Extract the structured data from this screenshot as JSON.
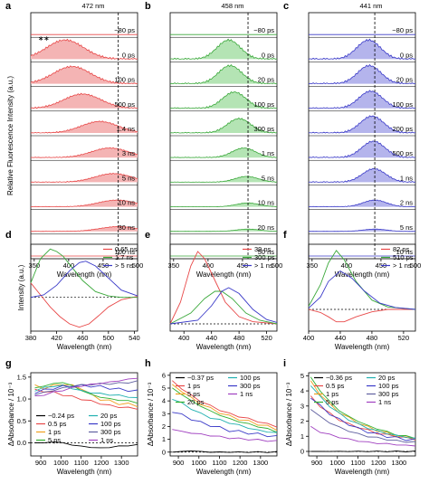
{
  "chart_data": [
    {
      "panel": "a",
      "type": "area",
      "top_label": "472 nm",
      "marker_x": 472,
      "xlabel": "Wavelength (nm)",
      "ylabel": "Relative Fluorescence Intensity (a.u.)",
      "xlim": [
        345,
        500
      ],
      "xticks": [
        350,
        400,
        450,
        500
      ],
      "color": "#e84848",
      "fill": "#f4b4b4",
      "star_label": "∗∗",
      "series": [
        {
          "name": "−80 ps",
          "amp": 0
        },
        {
          "name": "0 ps",
          "amp": 1.0,
          "peak": 395
        },
        {
          "name": "100 ps",
          "amp": 0.9,
          "peak": 405
        },
        {
          "name": "500 ps",
          "amp": 0.75,
          "peak": 420
        },
        {
          "name": "1.4 ns",
          "amp": 0.6,
          "peak": 445
        },
        {
          "name": "3 ns",
          "amp": 0.5,
          "peak": 460
        },
        {
          "name": "5 ns",
          "amp": 0.45,
          "peak": 465
        },
        {
          "name": "10 ns",
          "amp": 0.35,
          "peak": 470
        },
        {
          "name": "30 ns",
          "amp": 0.25,
          "peak": 472
        },
        {
          "name": "100 ns",
          "amp": 0
        }
      ]
    },
    {
      "panel": "b",
      "type": "area",
      "top_label": "458 nm",
      "marker_x": 458,
      "xlabel": "Wavelength (nm)",
      "ylabel": "",
      "xlim": [
        345,
        500
      ],
      "xticks": [
        350,
        400,
        450,
        500
      ],
      "color": "#3aa83a",
      "fill": "#b4e4b4",
      "series": [
        {
          "name": "−80 ps",
          "amp": 0
        },
        {
          "name": "0 ps",
          "amp": 1.0,
          "peak": 430
        },
        {
          "name": "20 ps",
          "amp": 0.95,
          "peak": 432
        },
        {
          "name": "100 ps",
          "amp": 0.85,
          "peak": 438
        },
        {
          "name": "300 ps",
          "amp": 0.75,
          "peak": 445
        },
        {
          "name": "1 ns",
          "amp": 0.5,
          "peak": 452
        },
        {
          "name": "5 ns",
          "amp": 0.3,
          "peak": 456
        },
        {
          "name": "10 ns",
          "amp": 0.2,
          "peak": 458
        },
        {
          "name": "20 ns",
          "amp": 0.12,
          "peak": 458
        },
        {
          "name": "50 ns",
          "amp": 0
        }
      ]
    },
    {
      "panel": "c",
      "type": "area",
      "top_label": "441 nm",
      "marker_x": 441,
      "xlabel": "Wavelength (nm)",
      "ylabel": "",
      "xlim": [
        345,
        500
      ],
      "xticks": [
        350,
        400,
        450,
        500
      ],
      "color": "#3a3ac8",
      "fill": "#b4b4ec",
      "series": [
        {
          "name": "−80 ps",
          "amp": 0
        },
        {
          "name": "0 ps",
          "amp": 1.0,
          "peak": 432
        },
        {
          "name": "20 ps",
          "amp": 0.95,
          "peak": 433
        },
        {
          "name": "100 ps",
          "amp": 0.9,
          "peak": 435
        },
        {
          "name": "200 ps",
          "amp": 0.88,
          "peak": 437
        },
        {
          "name": "500 ps",
          "amp": 0.85,
          "peak": 439
        },
        {
          "name": "1 ns",
          "amp": 0.7,
          "peak": 440
        },
        {
          "name": "2 ns",
          "amp": 0.35,
          "peak": 441
        },
        {
          "name": "5 ns",
          "amp": 0.12,
          "peak": 441
        },
        {
          "name": "10 ns",
          "amp": 0
        }
      ]
    },
    {
      "panel": "d",
      "type": "line",
      "xlabel": "Wavelength (nm)",
      "ylabel": "Intensity (a.u.)",
      "xlim": [
        380,
        545
      ],
      "ylim": [
        -0.7,
        1.1
      ],
      "xticks": [
        380,
        420,
        460,
        500,
        540
      ],
      "series": [
        {
          "name": "0.65 ns",
          "color": "#e84848",
          "x": [
            380,
            395,
            410,
            425,
            440,
            455,
            470,
            485,
            500,
            520,
            545
          ],
          "y": [
            0.3,
            0.05,
            -0.2,
            -0.4,
            -0.55,
            -0.62,
            -0.55,
            -0.38,
            -0.2,
            -0.05,
            0.02
          ]
        },
        {
          "name": "1.7 ns",
          "color": "#3aa83a",
          "x": [
            380,
            395,
            410,
            420,
            430,
            445,
            460,
            480,
            500,
            520,
            545
          ],
          "y": [
            0.3,
            0.8,
            1.0,
            0.95,
            0.85,
            0.6,
            0.35,
            0.12,
            0.03,
            0.0,
            0.0
          ]
        },
        {
          "name": "> 5 ns",
          "color": "#3a3ac8",
          "x": [
            380,
            400,
            420,
            440,
            455,
            465,
            480,
            500,
            520,
            545
          ],
          "y": [
            0.0,
            0.05,
            0.25,
            0.55,
            0.72,
            0.75,
            0.65,
            0.4,
            0.15,
            0.03
          ]
        }
      ]
    },
    {
      "panel": "e",
      "type": "line",
      "xlabel": "Wavelength (nm)",
      "ylabel": "",
      "xlim": [
        380,
        535
      ],
      "ylim": [
        -0.1,
        1.1
      ],
      "xticks": [
        400,
        440,
        480,
        520
      ],
      "series": [
        {
          "name": "39 ps",
          "color": "#e84848",
          "x": [
            380,
            395,
            410,
            420,
            430,
            445,
            460,
            480,
            500,
            535
          ],
          "y": [
            0.0,
            0.3,
            0.8,
            1.0,
            0.9,
            0.6,
            0.3,
            0.1,
            0.03,
            0.0
          ]
        },
        {
          "name": "300 ps",
          "color": "#3aa83a",
          "x": [
            380,
            410,
            430,
            445,
            455,
            470,
            490,
            510,
            535
          ],
          "y": [
            0.0,
            0.15,
            0.35,
            0.45,
            0.45,
            0.35,
            0.15,
            0.05,
            0.0
          ]
        },
        {
          "name": "> 1 ns",
          "color": "#3a3ac8",
          "x": [
            380,
            420,
            440,
            455,
            465,
            480,
            500,
            520,
            535
          ],
          "y": [
            0.0,
            0.05,
            0.25,
            0.45,
            0.5,
            0.42,
            0.2,
            0.06,
            0.02
          ]
        }
      ]
    },
    {
      "panel": "f",
      "type": "line",
      "xlabel": "Wavelength (nm)",
      "ylabel": "",
      "xlim": [
        400,
        535
      ],
      "ylim": [
        -0.35,
        1.05
      ],
      "xticks": [
        400,
        440,
        480,
        520
      ],
      "series": [
        {
          "name": "82 ps",
          "color": "#e84848",
          "x": [
            400,
            415,
            425,
            435,
            445,
            460,
            480,
            500,
            535
          ],
          "y": [
            0.0,
            -0.05,
            -0.12,
            -0.2,
            -0.2,
            -0.12,
            -0.04,
            0.0,
            0.0
          ]
        },
        {
          "name": "510 ps",
          "color": "#3aa83a",
          "x": [
            400,
            415,
            425,
            435,
            445,
            460,
            480,
            500,
            535
          ],
          "y": [
            0.05,
            0.4,
            0.75,
            0.95,
            0.8,
            0.45,
            0.15,
            0.04,
            0.0
          ]
        },
        {
          "name": "> 1 ns",
          "color": "#3a3ac8",
          "x": [
            400,
            415,
            425,
            440,
            455,
            470,
            490,
            510,
            535
          ],
          "y": [
            0.02,
            0.2,
            0.45,
            0.62,
            0.5,
            0.3,
            0.1,
            0.03,
            0.0
          ]
        }
      ]
    },
    {
      "panel": "g",
      "type": "line",
      "xlabel": "Wavelength (nm)",
      "ylabel": "ΔAbsorbance / 10⁻³",
      "xlim": [
        850,
        1380
      ],
      "ylim": [
        -0.3,
        1.6
      ],
      "xticks": [
        900,
        1000,
        1100,
        1200,
        1300
      ],
      "yticks": [
        0.0,
        0.5,
        1.0,
        1.5
      ],
      "ytick_labels": [
        "0.0",
        "0.5",
        "1.0",
        "1.5"
      ],
      "series": [
        {
          "name": "−0.24 ps",
          "color": "#000000",
          "v": [
            0.0,
            0.0,
            0.02,
            0.0,
            -0.05,
            -0.08,
            -0.1,
            -0.12,
            -0.1,
            -0.08,
            -0.06,
            -0.05
          ]
        },
        {
          "name": "0.5 ps",
          "color": "#e84848",
          "v": [
            1.2,
            1.18,
            1.15,
            1.1,
            1.05,
            1.0,
            0.95,
            0.9,
            0.85,
            0.82,
            0.8,
            0.78
          ]
        },
        {
          "name": "1 ps",
          "color": "#f0a020",
          "v": [
            1.3,
            1.25,
            1.3,
            1.35,
            1.3,
            1.25,
            1.1,
            1.0,
            0.95,
            0.9,
            0.88,
            0.85
          ]
        },
        {
          "name": "5 ps",
          "color": "#30b030",
          "v": [
            1.25,
            1.3,
            1.35,
            1.38,
            1.3,
            1.2,
            1.1,
            1.05,
            1.0,
            0.98,
            0.95,
            0.92
          ]
        },
        {
          "name": "20 ps",
          "color": "#20b0b0",
          "v": [
            1.2,
            1.25,
            1.3,
            1.3,
            1.25,
            1.18,
            1.15,
            1.12,
            1.1,
            1.08,
            1.05,
            1.02
          ]
        },
        {
          "name": "100 ps",
          "color": "#3a3ac8",
          "v": [
            1.15,
            1.2,
            1.25,
            1.28,
            1.3,
            1.3,
            1.3,
            1.28,
            1.25,
            1.22,
            1.2,
            1.18
          ]
        },
        {
          "name": "300 ps",
          "color": "#6060a0",
          "v": [
            1.1,
            1.15,
            1.2,
            1.25,
            1.3,
            1.32,
            1.33,
            1.35,
            1.35,
            1.36,
            1.38,
            1.4
          ]
        },
        {
          "name": "1 ns",
          "color": "#a040c0",
          "v": [
            1.05,
            1.1,
            1.15,
            1.2,
            1.25,
            1.3,
            1.33,
            1.36,
            1.38,
            1.42,
            1.45,
            1.48
          ]
        }
      ]
    },
    {
      "panel": "h",
      "type": "line",
      "xlabel": "Wavelength (nm)",
      "ylabel": "ΔAbsorbance / 10⁻³",
      "xlim": [
        860,
        1380
      ],
      "ylim": [
        -0.3,
        6.2
      ],
      "xticks": [
        900,
        1000,
        1100,
        1200,
        1300
      ],
      "yticks": [
        0,
        1,
        2,
        3,
        4,
        5,
        6
      ],
      "ytick_labels": [
        "0",
        "1",
        "2",
        "3",
        "4",
        "5",
        "6"
      ],
      "series": [
        {
          "name": "−0.37 ps",
          "color": "#000000",
          "v": [
            0.0,
            0.05,
            0.1,
            0.05,
            0.0,
            0.0,
            0.0,
            0.0,
            0.0,
            0.0,
            0.0,
            0.0
          ]
        },
        {
          "name": "1 ps",
          "color": "#e84848",
          "v": [
            5.5,
            5.0,
            4.4,
            4.0,
            3.6,
            3.3,
            3.0,
            2.8,
            2.6,
            2.4,
            2.2,
            2.0
          ]
        },
        {
          "name": "5 ps",
          "color": "#f0a020",
          "v": [
            5.2,
            4.8,
            4.2,
            3.8,
            3.4,
            3.1,
            2.8,
            2.6,
            2.4,
            2.2,
            2.0,
            1.8
          ]
        },
        {
          "name": "20 ps",
          "color": "#30b030",
          "v": [
            5.0,
            4.5,
            4.0,
            3.6,
            3.2,
            2.9,
            2.6,
            2.4,
            2.2,
            2.0,
            1.8,
            1.6
          ]
        },
        {
          "name": "100 ps",
          "color": "#20b0b0",
          "v": [
            4.2,
            3.8,
            3.4,
            3.0,
            2.7,
            2.5,
            2.3,
            2.1,
            1.9,
            1.7,
            1.6,
            1.5
          ]
        },
        {
          "name": "300 ps",
          "color": "#3a3ac8",
          "v": [
            3.2,
            2.9,
            2.6,
            2.3,
            2.1,
            1.9,
            1.7,
            1.6,
            1.5,
            1.4,
            1.3,
            1.2
          ]
        },
        {
          "name": "1 ns",
          "color": "#a040c0",
          "v": [
            1.8,
            1.6,
            1.5,
            1.4,
            1.3,
            1.2,
            1.1,
            1.05,
            1.0,
            0.95,
            0.9,
            0.85
          ]
        }
      ]
    },
    {
      "panel": "i",
      "type": "line",
      "xlabel": "Wavelength (nm)",
      "ylabel": "ΔAbsorbance / 10⁻³",
      "xlim": [
        860,
        1380
      ],
      "ylim": [
        -0.3,
        5.2
      ],
      "xticks": [
        900,
        1000,
        1100,
        1200,
        1300
      ],
      "yticks": [
        0,
        1,
        2,
        3,
        4,
        5
      ],
      "ytick_labels": [
        "0",
        "1",
        "2",
        "3",
        "4",
        "5"
      ],
      "series": [
        {
          "name": "−0.36 ps",
          "color": "#000000",
          "v": [
            0.0,
            0.0,
            0.0,
            0.0,
            0.0,
            0.0,
            0.0,
            0.0,
            0.0,
            0.0,
            0.0,
            0.0
          ]
        },
        {
          "name": "0.5 ps",
          "color": "#e84848",
          "v": [
            3.6,
            3.0,
            2.5,
            2.1,
            1.8,
            1.6,
            1.4,
            1.2,
            1.1,
            1.0,
            0.9,
            0.8
          ]
        },
        {
          "name": "1 ps",
          "color": "#f0a020",
          "v": [
            4.6,
            3.8,
            3.1,
            2.6,
            2.2,
            1.9,
            1.6,
            1.4,
            1.2,
            1.05,
            0.95,
            0.85
          ]
        },
        {
          "name": "5 ps",
          "color": "#30b030",
          "v": [
            4.9,
            4.0,
            3.3,
            2.7,
            2.3,
            2.0,
            1.7,
            1.5,
            1.3,
            1.1,
            1.0,
            0.9
          ]
        },
        {
          "name": "20 ps",
          "color": "#20b0b0",
          "v": [
            4.4,
            3.6,
            3.0,
            2.5,
            2.1,
            1.8,
            1.55,
            1.35,
            1.2,
            1.05,
            0.95,
            0.85
          ]
        },
        {
          "name": "100 ps",
          "color": "#3a3ac8",
          "v": [
            3.6,
            3.0,
            2.5,
            2.1,
            1.8,
            1.5,
            1.3,
            1.15,
            1.0,
            0.9,
            0.8,
            0.75
          ]
        },
        {
          "name": "300 ps",
          "color": "#6060a0",
          "v": [
            2.8,
            2.3,
            1.9,
            1.6,
            1.35,
            1.15,
            1.0,
            0.9,
            0.8,
            0.7,
            0.65,
            0.6
          ]
        },
        {
          "name": "1 ns",
          "color": "#a040c0",
          "v": [
            1.6,
            1.3,
            1.1,
            0.95,
            0.8,
            0.7,
            0.6,
            0.55,
            0.5,
            0.45,
            0.4,
            0.38
          ]
        }
      ]
    }
  ]
}
